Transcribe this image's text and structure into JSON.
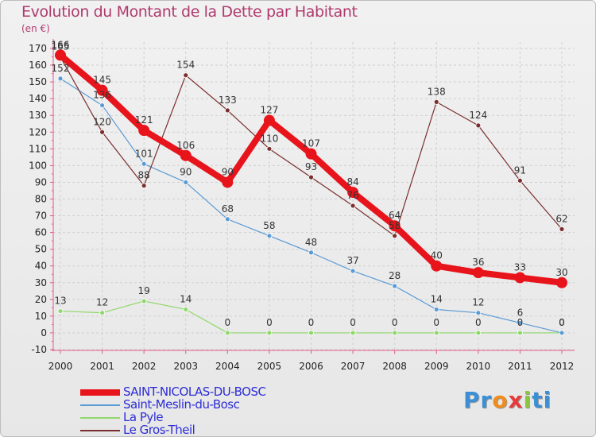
{
  "chart_data": {
    "type": "line",
    "title": "Evolution du Montant de la Dette par Habitant",
    "unit_label": "(en €)",
    "x": [
      "2000",
      "2001",
      "2002",
      "2003",
      "2004",
      "2005",
      "2006",
      "2007",
      "2008",
      "2009",
      "2010",
      "2011",
      "2012"
    ],
    "ylim": [
      -10,
      170
    ],
    "yticks": [
      -10,
      0,
      10,
      20,
      30,
      40,
      50,
      60,
      70,
      80,
      90,
      100,
      110,
      120,
      130,
      140,
      150,
      160,
      170
    ],
    "grid": true,
    "legend_position": "bottom-left",
    "series": [
      {
        "name": "SAINT-NICOLAS-DU-BOSC",
        "color": "#e8141b",
        "values": [
          166,
          145,
          121,
          106,
          90,
          127,
          107,
          84,
          64,
          40,
          36,
          33,
          30
        ]
      },
      {
        "name": "Saint-Meslin-du-Bosc",
        "color": "#5b9bd5",
        "values": [
          152,
          136,
          101,
          90,
          68,
          58,
          48,
          37,
          28,
          14,
          12,
          6,
          0
        ]
      },
      {
        "name": "La Pyle",
        "color": "#90d86a",
        "values": [
          13,
          12,
          19,
          14,
          0,
          0,
          0,
          0,
          0,
          0,
          0,
          0,
          0
        ]
      },
      {
        "name": "Le Gros-Theil",
        "color": "#7a2e2e",
        "values": [
          165,
          120,
          88,
          154,
          133,
          110,
          93,
          76,
          58,
          138,
          124,
          91,
          62
        ]
      }
    ]
  },
  "logo": {
    "letters": [
      "P",
      "r",
      "o",
      "x",
      "i",
      "t",
      "i"
    ],
    "colors": [
      "#3b8fd6",
      "#3b8fd6",
      "#f08c1c",
      "#e63b3b",
      "#8cc63f",
      "#3b8fd6",
      "#3b8fd6"
    ]
  }
}
